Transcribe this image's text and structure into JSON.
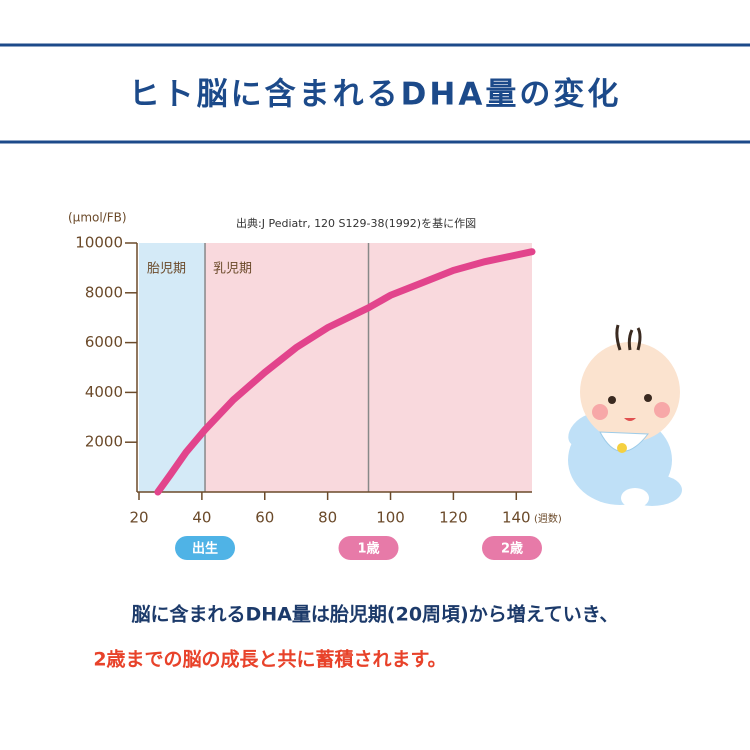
{
  "header": {
    "title": "ヒト脳に含まれるDHA量の変化"
  },
  "chart_data": {
    "type": "line",
    "y_unit": "(μmol/FB)",
    "x_unit": "(週数)",
    "source": "出典:J Pediatr, 120 S129-38(1992)を基に作図",
    "x": [
      26,
      30,
      35,
      41,
      50,
      60,
      70,
      80,
      93,
      100,
      110,
      120,
      130,
      145
    ],
    "series": [
      {
        "color": "#e2448c",
        "values": [
          0,
          700,
          1600,
          2500,
          3700,
          4800,
          5800,
          6600,
          7400,
          7900,
          8400,
          8900,
          9250,
          9650
        ]
      }
    ],
    "regions": [
      {
        "label": "胎児期",
        "range": [
          20,
          41
        ],
        "color": "#d4eaf7"
      },
      {
        "label": "乳児期",
        "range": [
          41,
          145
        ],
        "color": "#f9d9dd"
      }
    ],
    "reference_lines": [
      93
    ],
    "milestones": [
      {
        "label": "出生",
        "x": 41,
        "color": "#4fb3e6"
      },
      {
        "label": "1歳",
        "x": 93,
        "color": "#e77aa8"
      },
      {
        "label": "2歳",
        "x": 144,
        "color": "#e77aa8"
      }
    ],
    "xlim": [
      20,
      145
    ],
    "ylim": [
      0,
      10000
    ],
    "xticks": [
      20,
      40,
      60,
      80,
      100,
      120,
      140
    ],
    "yticks": [
      2000,
      4000,
      6000,
      8000,
      10000
    ]
  },
  "caption": {
    "line1": "脳に含まれるDHA量は胎児期(20周頃)から増えていき、",
    "line2": "2歳までの脳の成長と共に蓄積されます。"
  }
}
